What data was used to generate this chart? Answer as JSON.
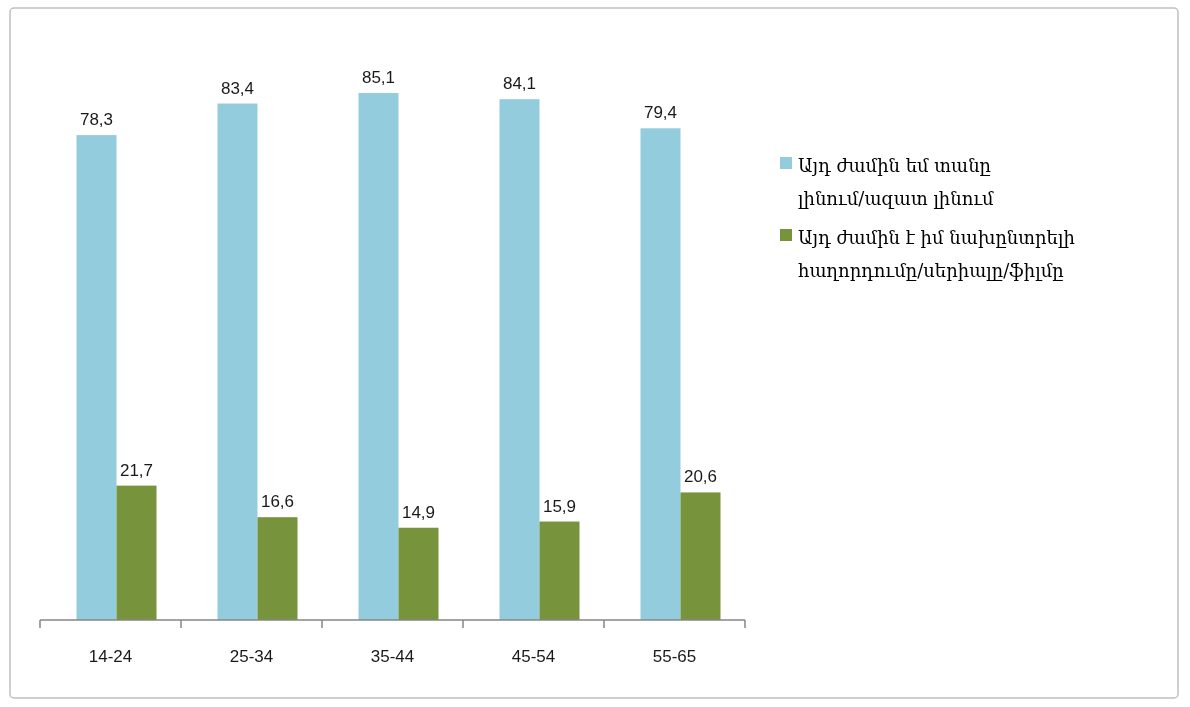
{
  "chart_data": {
    "type": "bar",
    "categories": [
      "14-24",
      "25-34",
      "35-44",
      "45-54",
      "55-65"
    ],
    "series": [
      {
        "name": "Այդ ժամին եմ տանը լինում/ազատ լինում",
        "color": "#93cddd",
        "values": [
          78.3,
          83.4,
          85.1,
          84.1,
          79.4
        ],
        "value_labels": [
          "78,3",
          "83,4",
          "85,1",
          "84,1",
          "79,4"
        ]
      },
      {
        "name": "Այդ ժամին է իմ նախընտրելի հաղորդումը/սերիալը/ֆիլմը",
        "color": "#77933c",
        "values": [
          21.7,
          16.6,
          14.9,
          15.9,
          20.6
        ],
        "value_labels": [
          "21,7",
          "16,6",
          "14,9",
          "15,9",
          "20,6"
        ]
      }
    ],
    "legend": "right"
  }
}
